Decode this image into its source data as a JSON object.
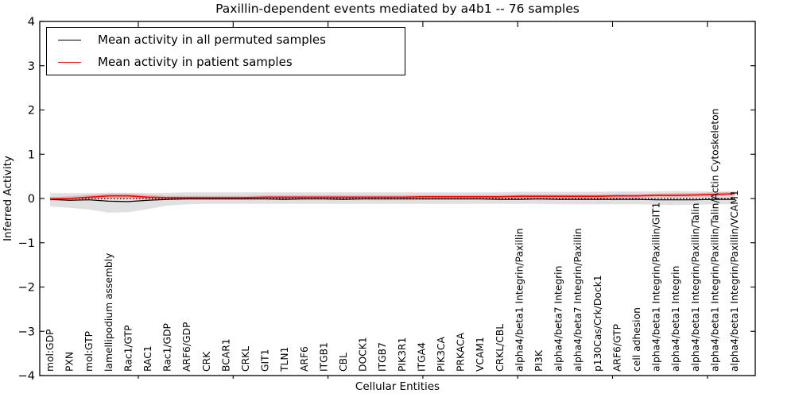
{
  "chart_data": {
    "type": "line",
    "title": "Paxillin-dependent events mediated by a4b1 -- 76 samples",
    "xlabel": "Cellular Entities",
    "ylabel": "Inferred Activity",
    "ylim": [
      -4,
      4
    ],
    "y_ticks": [
      4,
      3,
      2,
      1,
      0,
      -1,
      -2,
      -3,
      -4
    ],
    "y_tick_labels": [
      "4",
      "3",
      "2",
      "1",
      "0",
      "−1",
      "−2",
      "−3",
      "−4"
    ],
    "grid": false,
    "legend_position": "upper left",
    "background_color": "#ffffff",
    "categories": [
      "mol:GDP",
      "PXN",
      "mol:GTP",
      "lamellipodium assembly",
      "Rac1/GTP",
      "RAC1",
      "Rac1/GDP",
      "ARF6/GDP",
      "CRK",
      "BCAR1",
      "CRKL",
      "GIT1",
      "TLN1",
      "ARF6",
      "ITGB1",
      "CBL",
      "DOCK1",
      "ITGB7",
      "PIK3R1",
      "ITGA4",
      "PIK3CA",
      "PRKACA",
      "VCAM1",
      "CRKL/CBL",
      "alpha4/beta1 Integrin/Paxillin",
      "PI3K",
      "alpha4/beta7 Integrin",
      "alpha4/beta7 Integrin/Paxillin",
      "p130Cas/Crk/Dock1",
      "ARF6/GTP",
      "cell adhesion",
      "alpha4/beta1 Integrin/Paxillin/GIT1",
      "alpha4/beta1 Integrin",
      "alpha4/beta1 Integrin/Paxillin/Talin",
      "alpha4/beta1 Integrin/Paxillin/Talin/Actin Cytoskeleton",
      "alpha4/beta1 Integrin/Paxillin/VCAM1"
    ],
    "series": [
      {
        "name": "Mean activity in all permuted samples",
        "color": "#000000",
        "line_style": "solid",
        "values": [
          -0.02,
          -0.04,
          -0.03,
          -0.06,
          -0.07,
          -0.04,
          -0.02,
          -0.01,
          -0.01,
          -0.01,
          -0.01,
          -0.01,
          -0.02,
          -0.01,
          -0.01,
          -0.02,
          -0.01,
          -0.01,
          -0.01,
          -0.01,
          -0.01,
          -0.01,
          -0.01,
          -0.02,
          -0.02,
          -0.01,
          -0.02,
          -0.02,
          -0.02,
          -0.02,
          -0.02,
          -0.03,
          -0.03,
          -0.03,
          -0.02,
          -0.02
        ]
      },
      {
        "name": "Mean activity in patient samples",
        "color": "#ff0000",
        "line_style": "solid",
        "values": [
          -0.01,
          0.0,
          0.03,
          0.06,
          0.06,
          0.03,
          0.02,
          0.02,
          0.02,
          0.02,
          0.02,
          0.03,
          0.03,
          0.03,
          0.03,
          0.03,
          0.03,
          0.03,
          0.03,
          0.04,
          0.04,
          0.04,
          0.04,
          0.04,
          0.05,
          0.05,
          0.05,
          0.05,
          0.05,
          0.06,
          0.06,
          0.07,
          0.07,
          0.08,
          0.09,
          0.11
        ]
      }
    ],
    "bands": [
      {
        "name": "permuted-samples-std-band",
        "color": "#000000",
        "opacity": 0.12,
        "upper": [
          0.12,
          0.12,
          0.12,
          0.13,
          0.13,
          0.12,
          0.13,
          0.14,
          0.14,
          0.14,
          0.14,
          0.14,
          0.14,
          0.14,
          0.14,
          0.14,
          0.14,
          0.14,
          0.14,
          0.14,
          0.14,
          0.14,
          0.14,
          0.14,
          0.15,
          0.15,
          0.15,
          0.15,
          0.15,
          0.16,
          0.16,
          0.16,
          0.17,
          0.16,
          0.16,
          0.15
        ],
        "lower": [
          -0.18,
          -0.21,
          -0.25,
          -0.32,
          -0.31,
          -0.24,
          -0.16,
          -0.13,
          -0.12,
          -0.12,
          -0.12,
          -0.12,
          -0.12,
          -0.12,
          -0.12,
          -0.12,
          -0.12,
          -0.12,
          -0.12,
          -0.12,
          -0.12,
          -0.12,
          -0.12,
          -0.12,
          -0.12,
          -0.12,
          -0.13,
          -0.13,
          -0.13,
          -0.13,
          -0.13,
          -0.14,
          -0.15,
          -0.14,
          -0.13,
          -0.13
        ]
      },
      {
        "name": "patient-samples-std-band",
        "color": "#ff0000",
        "opacity": 0.2,
        "upper": [
          0.03,
          0.05,
          0.08,
          0.11,
          0.11,
          0.08,
          0.06,
          0.06,
          0.06,
          0.06,
          0.06,
          0.07,
          0.07,
          0.07,
          0.07,
          0.07,
          0.07,
          0.07,
          0.07,
          0.08,
          0.08,
          0.08,
          0.08,
          0.08,
          0.09,
          0.09,
          0.09,
          0.09,
          0.09,
          0.1,
          0.1,
          0.11,
          0.12,
          0.12,
          0.14,
          0.16
        ],
        "lower": [
          -0.05,
          -0.04,
          -0.02,
          0.01,
          0.01,
          -0.02,
          -0.02,
          -0.02,
          -0.02,
          -0.02,
          -0.02,
          -0.01,
          -0.01,
          -0.01,
          -0.01,
          -0.01,
          -0.01,
          -0.01,
          -0.01,
          0.0,
          0.0,
          0.0,
          0.0,
          0.0,
          0.01,
          0.01,
          0.01,
          0.01,
          0.01,
          0.02,
          0.02,
          0.03,
          0.03,
          0.04,
          0.05,
          0.07
        ]
      }
    ],
    "zero_line": {
      "value": 0,
      "style": "dotted",
      "color": "#000000"
    }
  }
}
